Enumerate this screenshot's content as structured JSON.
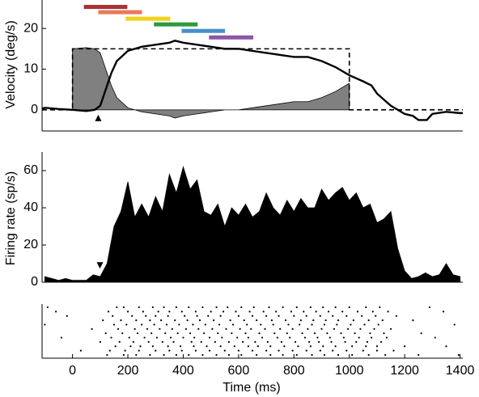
{
  "chart_data": [
    {
      "type": "line",
      "ylabel": "Velocity (deg/s)",
      "xlim": [
        -110,
        1410
      ],
      "ylim": [
        -5.2,
        27
      ],
      "yticks": [
        0,
        10,
        20
      ],
      "series": [
        {
          "color": "#808080",
          "fill": true,
          "style": "solid",
          "x": [
            -110,
            -100,
            -50,
            0,
            50,
            80,
            100,
            120,
            140,
            160,
            200,
            250,
            300,
            350,
            370,
            400,
            450,
            500,
            550,
            600,
            650,
            700,
            750,
            800,
            850,
            900,
            950,
            1000,
            1050,
            1080,
            1100,
            1150,
            1200,
            1230,
            1250,
            1280,
            1300,
            1350,
            1400,
            1410
          ],
          "values": [
            null,
            null,
            null,
            15,
            15.3,
            15,
            14,
            10,
            6,
            3,
            0.5,
            -0.5,
            -1,
            -1.5,
            -2,
            -1.5,
            -1,
            -0.5,
            0,
            0,
            0.5,
            1,
            1.5,
            2,
            2,
            3,
            4.5,
            6.5,
            null,
            null,
            null,
            null,
            null,
            null,
            null,
            null,
            null,
            null,
            null,
            null
          ]
        },
        {
          "color": "#000000",
          "fill": false,
          "style": "dashed",
          "x": [
            -110,
            0,
            0,
            1000,
            1000,
            1410
          ],
          "values": [
            0,
            0,
            15,
            15,
            0,
            0
          ]
        },
        {
          "color": "#000000",
          "fill": false,
          "style": "solid",
          "x": [
            -110,
            -100,
            -50,
            0,
            50,
            80,
            100,
            120,
            140,
            160,
            200,
            250,
            300,
            350,
            370,
            400,
            450,
            500,
            550,
            600,
            650,
            700,
            750,
            800,
            850,
            900,
            950,
            1000,
            1050,
            1080,
            1100,
            1150,
            1200,
            1230,
            1250,
            1280,
            1300,
            1350,
            1400,
            1410
          ],
          "values": [
            0.3,
            0.5,
            0.2,
            0,
            -0.3,
            0,
            1,
            5,
            9,
            12,
            14.5,
            15.5,
            16,
            16.5,
            17,
            16.5,
            16,
            15.5,
            15,
            15,
            14.5,
            14,
            13.5,
            13,
            13,
            12,
            10.5,
            8.5,
            7,
            6,
            4,
            1,
            -1,
            -1.5,
            -2.5,
            -2.5,
            -1,
            -0.5,
            -0.8,
            -0.8
          ]
        }
      ],
      "bars": [
        {
          "start": 41,
          "end": 198,
          "y": 25.3,
          "color": "#a83232"
        },
        {
          "start": 93,
          "end": 251,
          "y": 24,
          "color": "#e8795a"
        },
        {
          "start": 192,
          "end": 353,
          "y": 22.4,
          "color": "#f2d21b"
        },
        {
          "start": 294,
          "end": 452,
          "y": 21,
          "color": "#2e9a3c"
        },
        {
          "start": 394,
          "end": 551,
          "y": 19.4,
          "color": "#4a90c8"
        },
        {
          "start": 493,
          "end": 653,
          "y": 17.8,
          "color": "#8e55a8"
        }
      ],
      "marker": {
        "x": 93,
        "y": -2,
        "shape": "up"
      }
    },
    {
      "type": "area",
      "ylabel": "Firing rate (sp/s)",
      "xlim": [
        -110,
        1410
      ],
      "ylim": [
        0,
        70
      ],
      "yticks": [
        0,
        20,
        40,
        60
      ],
      "series": [
        {
          "color": "#000000",
          "fill": true,
          "style": "solid",
          "x": [
            -100,
            -75,
            -50,
            -25,
            0,
            25,
            50,
            75,
            100,
            125,
            150,
            175,
            200,
            225,
            250,
            275,
            300,
            325,
            350,
            375,
            400,
            425,
            450,
            475,
            500,
            525,
            550,
            575,
            600,
            625,
            650,
            675,
            700,
            725,
            750,
            775,
            800,
            825,
            850,
            875,
            900,
            925,
            950,
            975,
            1000,
            1025,
            1050,
            1075,
            1100,
            1125,
            1150,
            1175,
            1200,
            1225,
            1250,
            1275,
            1300,
            1325,
            1350,
            1375,
            1400
          ],
          "values": [
            3,
            2,
            1,
            2,
            1,
            1,
            1,
            4,
            3,
            10,
            30,
            38,
            54,
            35,
            42,
            35,
            46,
            38,
            58,
            48,
            62,
            50,
            55,
            38,
            36,
            42,
            30,
            40,
            36,
            42,
            35,
            38,
            48,
            40,
            36,
            44,
            38,
            45,
            40,
            40,
            50,
            44,
            48,
            51,
            44,
            48,
            40,
            42,
            32,
            34,
            38,
            18,
            6,
            2,
            3,
            5,
            3,
            4,
            10,
            4,
            3
          ]
        }
      ],
      "marker": {
        "x": 99,
        "y": 9,
        "shape": "down"
      }
    },
    {
      "type": "raster",
      "xlabel": "Time (ms)",
      "xlim": [
        -110,
        1410
      ],
      "xticks": [
        0,
        200,
        400,
        600,
        800,
        1000,
        1200,
        1400
      ],
      "trials": [
        [
          -90,
          160,
          185,
          240,
          290,
          330,
          375,
          420,
          470,
          520,
          560,
          610,
          655,
          710,
          760,
          810,
          860,
          905,
          950,
          1000,
          1060,
          1110,
          1290
        ],
        [
          -60,
          130,
          200,
          255,
          310,
          350,
          395,
          445,
          500,
          545,
          590,
          640,
          690,
          735,
          790,
          835,
          880,
          925,
          975,
          1030,
          1085,
          1140,
          1340
        ],
        [
          -20,
          145,
          215,
          265,
          300,
          345,
          405,
          450,
          490,
          535,
          600,
          650,
          700,
          745,
          800,
          845,
          895,
          940,
          990,
          1045,
          1095,
          1170
        ],
        [
          110,
          175,
          230,
          280,
          320,
          370,
          415,
          460,
          510,
          570,
          620,
          665,
          720,
          770,
          825,
          870,
          915,
          960,
          1015,
          1070,
          1120,
          1230
        ],
        [
          -100,
          150,
          195,
          250,
          295,
          340,
          385,
          435,
          480,
          530,
          580,
          630,
          680,
          725,
          780,
          820,
          865,
          910,
          955,
          1005,
          1055,
          1105,
          1380
        ],
        [
          70,
          165,
          225,
          270,
          315,
          360,
          410,
          455,
          505,
          555,
          605,
          645,
          695,
          750,
          795,
          850,
          900,
          945,
          995,
          1040,
          1090,
          1150
        ],
        [
          120,
          180,
          235,
          285,
          335,
          380,
          425,
          475,
          525,
          575,
          625,
          675,
          730,
          775,
          830,
          875,
          920,
          970,
          1020,
          1075,
          1125,
          1260
        ],
        [
          -40,
          140,
          205,
          260,
          305,
          355,
          400,
          440,
          495,
          540,
          595,
          635,
          685,
          740,
          785,
          840,
          885,
          930,
          980,
          1035,
          1080,
          1135,
          1310
        ],
        [
          100,
          170,
          220,
          275,
          325,
          365,
          430,
          465,
          515,
          565,
          615,
          660,
          705,
          755,
          805,
          855,
          890,
          935,
          985,
          1025,
          1065,
          1115
        ],
        [
          155,
          210,
          245,
          290,
          345,
          390,
          438,
          485,
          535,
          585,
          635,
          670,
          715,
          765,
          815,
          860,
          905,
          950,
          1010,
          1060,
          1100,
          1200,
          1350
        ],
        [
          30,
          135,
          190,
          240,
          300,
          350,
          395,
          445,
          495,
          550,
          600,
          650,
          700,
          745,
          795,
          845,
          895,
          940,
          990,
          1050,
          1100,
          1160
        ],
        [
          125,
          185,
          230,
          280,
          330,
          375,
          420,
          470,
          520,
          565,
          610,
          665,
          715,
          760,
          810,
          865,
          910,
          960,
          1010,
          1070,
          1130,
          1250,
          1395
        ]
      ]
    }
  ]
}
